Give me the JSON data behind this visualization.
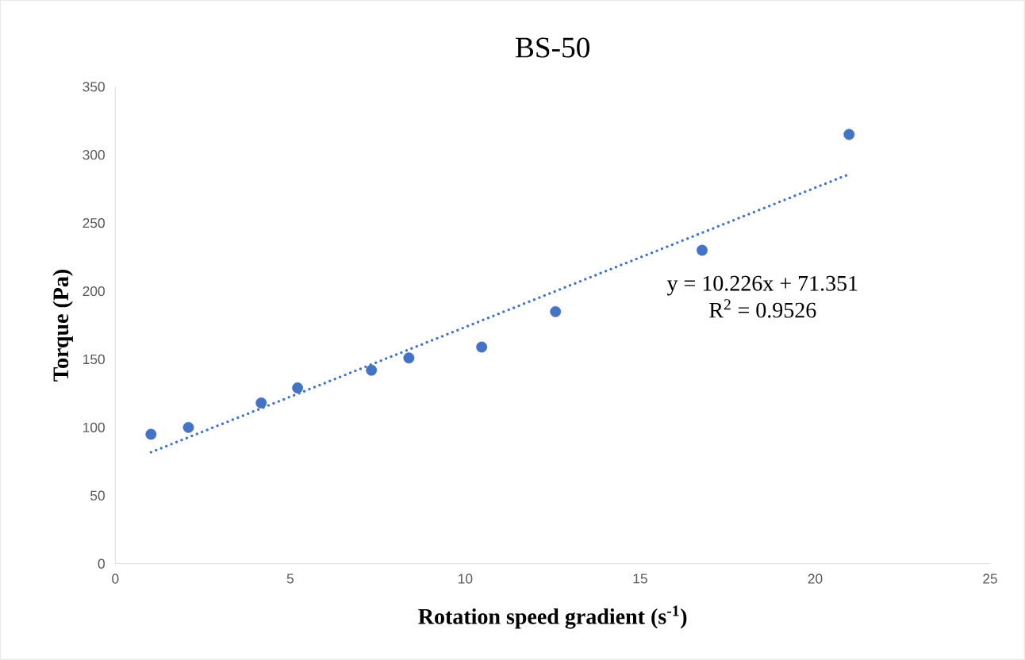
{
  "chart_data": {
    "type": "scatter",
    "title": "BS-50",
    "xlabel": "Rotation speed gradient (s$^{-1}$)",
    "ylabel": "Torque (Pa)",
    "xlim": [
      0,
      25
    ],
    "xticks": [
      0,
      5,
      10,
      15,
      20,
      25
    ],
    "ylim": [
      0,
      350
    ],
    "yticks": [
      0,
      50,
      100,
      150,
      200,
      250,
      300,
      350
    ],
    "grid": false,
    "series": [
      {
        "color": "#4472c4",
        "marker": "circle",
        "x": [
          1.02,
          2.09,
          4.17,
          5.21,
          7.32,
          8.39,
          10.47,
          12.58,
          16.77,
          20.97
        ],
        "values": [
          95,
          100,
          118,
          129,
          142,
          151,
          159,
          185,
          230,
          315
        ]
      },
      {
        "type": "line",
        "color": "#4472c4",
        "marker": "none",
        "line_style": "dotted",
        "x": [
          1.02,
          20.97
        ],
        "values": [
          81.8,
          285.8
        ]
      }
    ],
    "annotations": [
      "y = 10.226x + 71.351",
      "R$^{2}$ = 0.9526"
    ]
  }
}
